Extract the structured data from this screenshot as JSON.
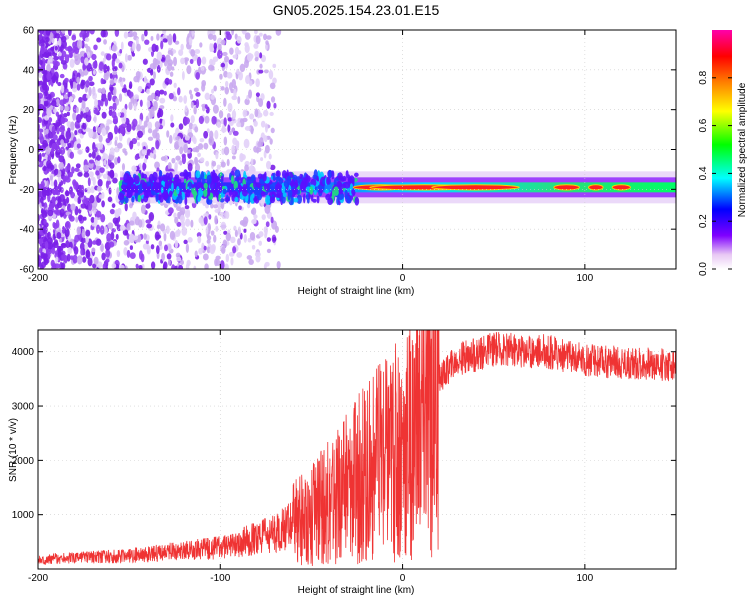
{
  "figure": {
    "title": "GN05.2025.154.23.01.E15"
  },
  "chart_data": [
    {
      "type": "heatmap",
      "xlabel": "Height of straight line (km)",
      "ylabel": "Frequency (Hz)",
      "xlim": [
        -200,
        150
      ],
      "ylim": [
        -60,
        60
      ],
      "xticks": [
        -200,
        -100,
        0,
        100
      ],
      "yticks": [
        -60,
        -40,
        -20,
        0,
        20,
        40,
        60
      ],
      "colorbar": {
        "label": "Normalized spectral amplitude",
        "range": [
          0.0,
          1.0
        ],
        "ticks": [
          0.0,
          0.2,
          0.4,
          0.6,
          0.8
        ],
        "colormap": "rainbow",
        "stops": [
          "#ffffff",
          "#e8c8f4",
          "#7f00ff",
          "#0000ff",
          "#00ffff",
          "#00ff00",
          "#ffff00",
          "#ff8000",
          "#ff0000",
          "#ff00aa"
        ]
      },
      "features": [
        {
          "desc": "scattered purple noise",
          "x_range": [
            -200,
            -70
          ],
          "y_range": [
            -60,
            60
          ],
          "amplitude": 0.2
        },
        {
          "desc": "dominant frequency band",
          "x_range": [
            -155,
            150
          ],
          "center_frequency": -19,
          "amplitude_peak": 0.9
        }
      ],
      "grid": true
    },
    {
      "type": "line",
      "xlabel": "Height of straight line (km)",
      "ylabel": "SNR (10 * v/v)",
      "xlim": [
        -200,
        150
      ],
      "ylim": [
        0,
        4400
      ],
      "xticks": [
        -200,
        -100,
        0,
        100
      ],
      "yticks": [
        1000,
        2000,
        3000,
        4000
      ],
      "series_color": "#ef3333",
      "envelope": [
        {
          "x": -200,
          "y": 180
        },
        {
          "x": -150,
          "y": 240
        },
        {
          "x": -100,
          "y": 400
        },
        {
          "x": -70,
          "y": 650
        },
        {
          "x": -50,
          "y": 1000
        },
        {
          "x": -35,
          "y": 1350
        },
        {
          "x": -25,
          "y": 1650
        },
        {
          "x": -15,
          "y": 1900
        },
        {
          "x": -5,
          "y": 2150
        },
        {
          "x": 5,
          "y": 2450
        },
        {
          "x": 10,
          "y": 2800
        },
        {
          "x": 15,
          "y": 3200
        },
        {
          "x": 20,
          "y": 3500
        },
        {
          "x": 30,
          "y": 3850
        },
        {
          "x": 50,
          "y": 4050
        },
        {
          "x": 80,
          "y": 4000
        },
        {
          "x": 100,
          "y": 3850
        },
        {
          "x": 120,
          "y": 3800
        },
        {
          "x": 150,
          "y": 3750
        }
      ],
      "grid": true
    }
  ]
}
